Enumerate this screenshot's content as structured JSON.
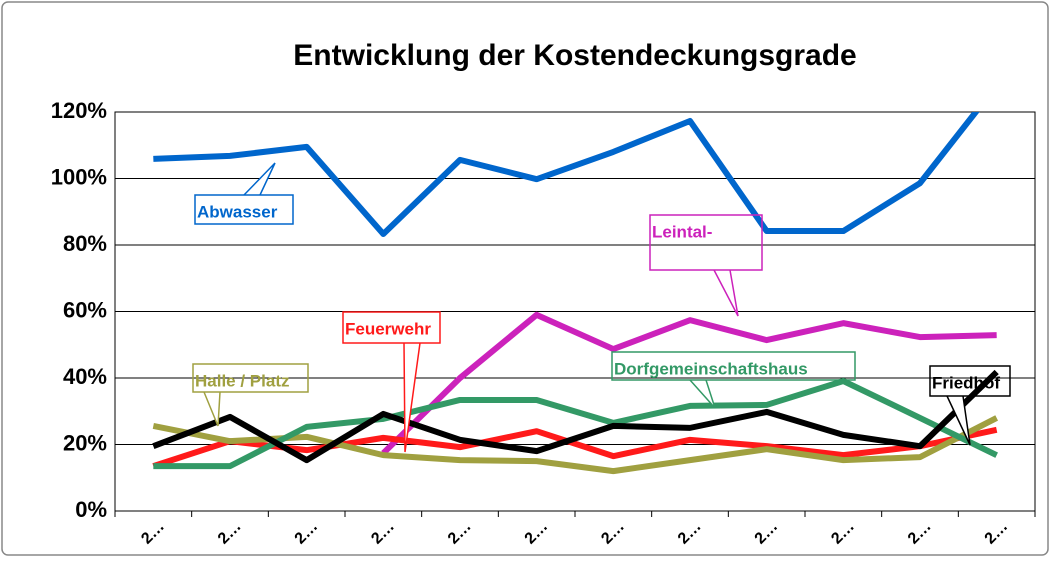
{
  "chart_data": {
    "type": "line",
    "title": "Entwicklung der Kostendeckungsgrade",
    "categories": [
      "2…",
      "2…",
      "2…",
      "2…",
      "2…",
      "2…",
      "2…",
      "2…",
      "2…",
      "2…",
      "2…",
      "2…"
    ],
    "series": [
      {
        "name": "Abwasser",
        "color": "#0066cc",
        "values": [
          105.9,
          106.8,
          109.5,
          83.3,
          105.6,
          99.8,
          108,
          117.3,
          84.2,
          84.2,
          98.6,
          128
        ]
      },
      {
        "name": "Leintal-",
        "color": "#cc22bb",
        "values": [
          null,
          null,
          null,
          17.4,
          40,
          59,
          48.7,
          57.4,
          51.4,
          56.5,
          52.3,
          52.9
        ]
      },
      {
        "name": "Feuerwehr",
        "color": "#ff1a1a",
        "values": [
          13.5,
          21,
          18.3,
          22,
          19.2,
          24,
          16.5,
          21.4,
          19.5,
          16.8,
          19.5,
          24.4
        ]
      },
      {
        "name": "Halle / Platz",
        "color": "#a0a040",
        "values": [
          25.6,
          21,
          22.3,
          16.8,
          15.3,
          15,
          12,
          15.3,
          18.6,
          15.3,
          16.2,
          28
        ]
      },
      {
        "name": "Dorfgemeinschaftshaus",
        "color": "#339966",
        "values": [
          13.5,
          13.5,
          25.3,
          27.7,
          33.4,
          33.4,
          26.5,
          31.6,
          31.9,
          39.1,
          28,
          16.8
        ]
      },
      {
        "name": "Friedhof",
        "color": "#000000",
        "values": [
          19.5,
          28.3,
          15.3,
          29.2,
          21.4,
          18,
          25.6,
          25,
          29.8,
          22.9,
          19.5,
          41.8
        ]
      }
    ],
    "ylim": [
      0,
      120
    ],
    "yticks": [
      {
        "value": 0,
        "label": "0%"
      },
      {
        "value": 20,
        "label": "20%"
      },
      {
        "value": 40,
        "label": "40%"
      },
      {
        "value": 60,
        "label": "60%"
      },
      {
        "value": 80,
        "label": "80%"
      },
      {
        "value": 100,
        "label": "100%"
      },
      {
        "value": 120,
        "label": "120%"
      }
    ],
    "grid": true
  }
}
